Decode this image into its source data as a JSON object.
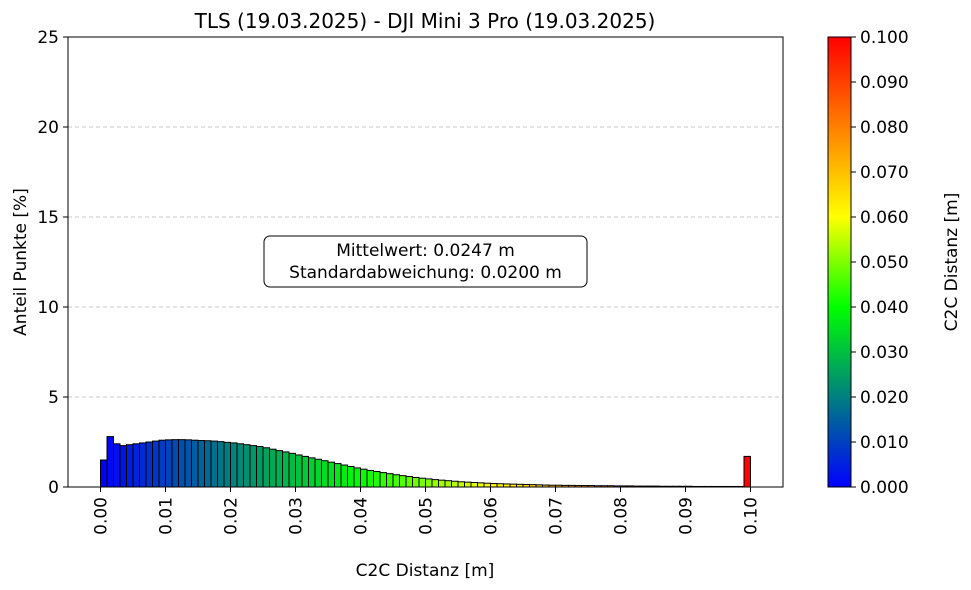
{
  "chart_data": {
    "type": "bar",
    "title": "TLS (19.03.2025) - DJI Mini 3 Pro (19.03.2025)",
    "xlabel": "C2C Distanz [m]",
    "ylabel": "Anteil Punkte [%]",
    "xlim": [
      -0.005,
      0.105
    ],
    "ylim": [
      0,
      25
    ],
    "grid": "y-dashed",
    "bin_width": 0.001,
    "bin_start": 0.0,
    "x_ticks": [
      "0.00",
      "0.01",
      "0.02",
      "0.03",
      "0.04",
      "0.05",
      "0.06",
      "0.07",
      "0.08",
      "0.09",
      "0.10"
    ],
    "y_ticks": [
      "0",
      "5",
      "10",
      "15",
      "20",
      "25"
    ],
    "values": [
      1.5,
      2.8,
      2.4,
      2.3,
      2.35,
      2.4,
      2.45,
      2.5,
      2.55,
      2.6,
      2.62,
      2.63,
      2.63,
      2.62,
      2.6,
      2.58,
      2.57,
      2.55,
      2.52,
      2.48,
      2.45,
      2.4,
      2.35,
      2.3,
      2.25,
      2.18,
      2.1,
      2.02,
      1.95,
      1.87,
      1.78,
      1.7,
      1.62,
      1.54,
      1.46,
      1.38,
      1.3,
      1.22,
      1.14,
      1.06,
      0.99,
      0.92,
      0.86,
      0.8,
      0.74,
      0.68,
      0.63,
      0.58,
      0.53,
      0.49,
      0.45,
      0.41,
      0.38,
      0.35,
      0.32,
      0.29,
      0.27,
      0.25,
      0.23,
      0.21,
      0.19,
      0.18,
      0.17,
      0.16,
      0.15,
      0.14,
      0.13,
      0.12,
      0.11,
      0.1,
      0.1,
      0.09,
      0.09,
      0.08,
      0.08,
      0.08,
      0.07,
      0.07,
      0.07,
      0.06,
      0.06,
      0.06,
      0.05,
      0.05,
      0.05,
      0.05,
      0.04,
      0.04,
      0.04,
      0.04,
      0.04,
      0.03,
      0.03,
      0.03,
      0.03,
      0.03,
      0.03,
      0.03,
      0.03,
      1.7
    ],
    "annotation": [
      "Mittelwert: 0.0247 m",
      "Standardabweichung: 0.0200 m"
    ],
    "colorbar": {
      "label": "C2C Distanz [m]",
      "range": [
        0.0,
        0.1
      ],
      "ticks": [
        "0.000",
        "0.010",
        "0.020",
        "0.030",
        "0.040",
        "0.050",
        "0.060",
        "0.070",
        "0.080",
        "0.090",
        "0.100"
      ],
      "colormap_stops": [
        "#0000ff",
        "#00ff00",
        "#ffff00",
        "#ff0000"
      ]
    }
  }
}
